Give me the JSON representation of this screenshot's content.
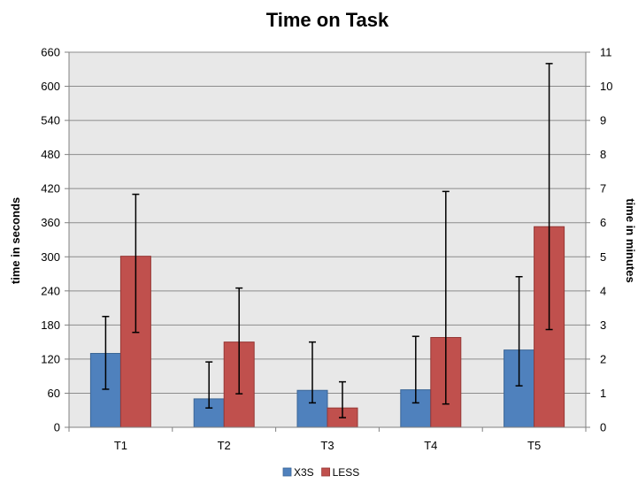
{
  "chart_data": {
    "type": "bar",
    "title": "Time on Task",
    "categories": [
      "T1",
      "T2",
      "T3",
      "T4",
      "T5"
    ],
    "series": [
      {
        "name": "X3S",
        "color": "#4F81BD",
        "values": [
          130,
          50,
          65,
          66,
          136
        ],
        "error_low": [
          67,
          34,
          43,
          43,
          73
        ],
        "error_high": [
          195,
          115,
          150,
          160,
          265
        ]
      },
      {
        "name": "LESS",
        "color": "#C0504D",
        "values": [
          301,
          150,
          34,
          158,
          353
        ],
        "error_low": [
          167,
          59,
          17,
          41,
          172
        ],
        "error_high": [
          410,
          245,
          80,
          415,
          640
        ]
      }
    ],
    "y_left": {
      "label": "time in seconds",
      "ylim": [
        0,
        660
      ],
      "ticks": [
        0,
        60,
        120,
        180,
        240,
        300,
        360,
        420,
        480,
        540,
        600,
        660
      ]
    },
    "y_right": {
      "label": "time in minutes",
      "ylim": [
        0,
        11
      ],
      "ticks": [
        0,
        1,
        2,
        3,
        4,
        5,
        6,
        7,
        8,
        9,
        10,
        11
      ]
    },
    "grid": true,
    "legend": "bottom",
    "plot_background": "#E8E8E8"
  }
}
